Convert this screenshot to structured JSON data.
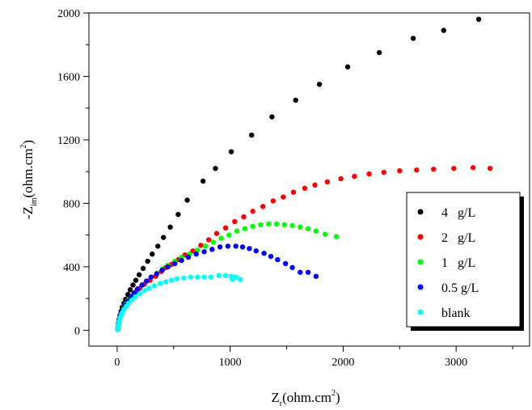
{
  "chart_data": {
    "type": "scatter",
    "xlabel": {
      "main": "Z",
      "sub": "r",
      "unit_main": "(ohm.cm",
      "unit_sup": "2",
      "unit_end": ")"
    },
    "ylabel": {
      "prefix": "-Z",
      "sub": "im",
      "unit_main": "(ohm.cm",
      "unit_sup": "2",
      "unit_end": ")"
    },
    "xlim": [
      -250,
      3650
    ],
    "ylim": [
      -100,
      2000
    ],
    "xticks": [
      0,
      1000,
      2000,
      3000
    ],
    "xtick_labels": [
      "0",
      "1000",
      "2000",
      "3000"
    ],
    "yticks": [
      0,
      400,
      800,
      1200,
      1600,
      2000
    ],
    "ytick_labels": [
      "0",
      "400",
      "800",
      "1200",
      "1600",
      "2000"
    ],
    "legend_position": "right",
    "series": [
      {
        "name": "4   g/L",
        "color": "#000000",
        "points": [
          [
            5,
            5
          ],
          [
            8,
            25
          ],
          [
            12,
            45
          ],
          [
            18,
            70
          ],
          [
            25,
            95
          ],
          [
            35,
            120
          ],
          [
            45,
            145
          ],
          [
            60,
            170
          ],
          [
            75,
            195
          ],
          [
            95,
            225
          ],
          [
            115,
            255
          ],
          [
            140,
            285
          ],
          [
            165,
            315
          ],
          [
            195,
            350
          ],
          [
            230,
            390
          ],
          [
            270,
            435
          ],
          [
            310,
            480
          ],
          [
            360,
            530
          ],
          [
            410,
            585
          ],
          [
            470,
            650
          ],
          [
            540,
            730
          ],
          [
            620,
            820
          ],
          [
            760,
            940
          ],
          [
            870,
            1020
          ],
          [
            1010,
            1125
          ],
          [
            1190,
            1230
          ],
          [
            1370,
            1345
          ],
          [
            1580,
            1450
          ],
          [
            1790,
            1550
          ],
          [
            2040,
            1660
          ],
          [
            2320,
            1750
          ],
          [
            2620,
            1840
          ],
          [
            2890,
            1890
          ],
          [
            3200,
            1960
          ]
        ]
      },
      {
        "name": "2   g/L",
        "color": "#ff0000",
        "points": [
          [
            5,
            5
          ],
          [
            8,
            20
          ],
          [
            12,
            40
          ],
          [
            18,
            60
          ],
          [
            25,
            80
          ],
          [
            35,
            100
          ],
          [
            45,
            120
          ],
          [
            60,
            140
          ],
          [
            75,
            160
          ],
          [
            95,
            180
          ],
          [
            115,
            200
          ],
          [
            140,
            220
          ],
          [
            170,
            245
          ],
          [
            200,
            265
          ],
          [
            240,
            290
          ],
          [
            290,
            315
          ],
          [
            340,
            340
          ],
          [
            390,
            370
          ],
          [
            430,
            395
          ],
          [
            480,
            415
          ],
          [
            540,
            445
          ],
          [
            600,
            475
          ],
          [
            670,
            500
          ],
          [
            740,
            535
          ],
          [
            810,
            570
          ],
          [
            880,
            610
          ],
          [
            960,
            645
          ],
          [
            1040,
            685
          ],
          [
            1120,
            715
          ],
          [
            1200,
            750
          ],
          [
            1290,
            780
          ],
          [
            1380,
            815
          ],
          [
            1470,
            840
          ],
          [
            1560,
            870
          ],
          [
            1660,
            895
          ],
          [
            1750,
            915
          ],
          [
            1860,
            935
          ],
          [
            1980,
            955
          ],
          [
            2100,
            970
          ],
          [
            2230,
            985
          ],
          [
            2360,
            995
          ],
          [
            2500,
            1005
          ],
          [
            2650,
            1010
          ],
          [
            2800,
            1015
          ],
          [
            2980,
            1020
          ],
          [
            3150,
            1025
          ],
          [
            3300,
            1020
          ]
        ]
      },
      {
        "name": "1   g/L",
        "color": "#00ff00",
        "points": [
          [
            5,
            5
          ],
          [
            8,
            20
          ],
          [
            12,
            40
          ],
          [
            18,
            60
          ],
          [
            25,
            80
          ],
          [
            35,
            100
          ],
          [
            45,
            120
          ],
          [
            60,
            145
          ],
          [
            75,
            165
          ],
          [
            95,
            190
          ],
          [
            120,
            210
          ],
          [
            150,
            235
          ],
          [
            180,
            260
          ],
          [
            220,
            285
          ],
          [
            260,
            310
          ],
          [
            300,
            335
          ],
          [
            350,
            360
          ],
          [
            400,
            385
          ],
          [
            450,
            410
          ],
          [
            510,
            435
          ],
          [
            570,
            460
          ],
          [
            640,
            480
          ],
          [
            710,
            505
          ],
          [
            780,
            530
          ],
          [
            850,
            555
          ],
          [
            920,
            580
          ],
          [
            990,
            600
          ],
          [
            1060,
            625
          ],
          [
            1130,
            640
          ],
          [
            1200,
            655
          ],
          [
            1270,
            665
          ],
          [
            1340,
            670
          ],
          [
            1410,
            670
          ],
          [
            1480,
            665
          ],
          [
            1550,
            660
          ],
          [
            1620,
            650
          ],
          [
            1690,
            640
          ],
          [
            1760,
            625
          ],
          [
            1840,
            605
          ],
          [
            1940,
            590
          ]
        ]
      },
      {
        "name": "0.5 g/L",
        "color": "#0000ff",
        "points": [
          [
            5,
            5
          ],
          [
            8,
            20
          ],
          [
            12,
            40
          ],
          [
            18,
            60
          ],
          [
            25,
            80
          ],
          [
            35,
            100
          ],
          [
            45,
            120
          ],
          [
            60,
            140
          ],
          [
            75,
            160
          ],
          [
            95,
            185
          ],
          [
            120,
            210
          ],
          [
            150,
            235
          ],
          [
            180,
            260
          ],
          [
            220,
            285
          ],
          [
            260,
            310
          ],
          [
            300,
            335
          ],
          [
            350,
            355
          ],
          [
            400,
            380
          ],
          [
            450,
            400
          ],
          [
            510,
            420
          ],
          [
            570,
            440
          ],
          [
            630,
            460
          ],
          [
            700,
            480
          ],
          [
            770,
            495
          ],
          [
            840,
            510
          ],
          [
            910,
            525
          ],
          [
            980,
            530
          ],
          [
            1050,
            530
          ],
          [
            1110,
            525
          ],
          [
            1170,
            515
          ],
          [
            1230,
            500
          ],
          [
            1300,
            485
          ],
          [
            1360,
            465
          ],
          [
            1420,
            445
          ],
          [
            1490,
            420
          ],
          [
            1550,
            395
          ],
          [
            1620,
            365
          ],
          [
            1690,
            365
          ],
          [
            1760,
            340
          ]
        ]
      },
      {
        "name": "blank",
        "color": "#00ffff",
        "points": [
          [
            5,
            5
          ],
          [
            8,
            20
          ],
          [
            12,
            35
          ],
          [
            18,
            55
          ],
          [
            25,
            75
          ],
          [
            35,
            95
          ],
          [
            45,
            110
          ],
          [
            60,
            130
          ],
          [
            80,
            150
          ],
          [
            100,
            170
          ],
          [
            130,
            190
          ],
          [
            160,
            210
          ],
          [
            200,
            230
          ],
          [
            240,
            250
          ],
          [
            280,
            265
          ],
          [
            330,
            280
          ],
          [
            380,
            295
          ],
          [
            430,
            305
          ],
          [
            480,
            315
          ],
          [
            530,
            325
          ],
          [
            590,
            330
          ],
          [
            650,
            335
          ],
          [
            710,
            335
          ],
          [
            770,
            335
          ],
          [
            830,
            335
          ],
          [
            900,
            345
          ],
          [
            960,
            345
          ],
          [
            1010,
            340
          ],
          [
            1050,
            335
          ],
          [
            1090,
            320
          ],
          [
            1020,
            320
          ]
        ]
      }
    ]
  }
}
